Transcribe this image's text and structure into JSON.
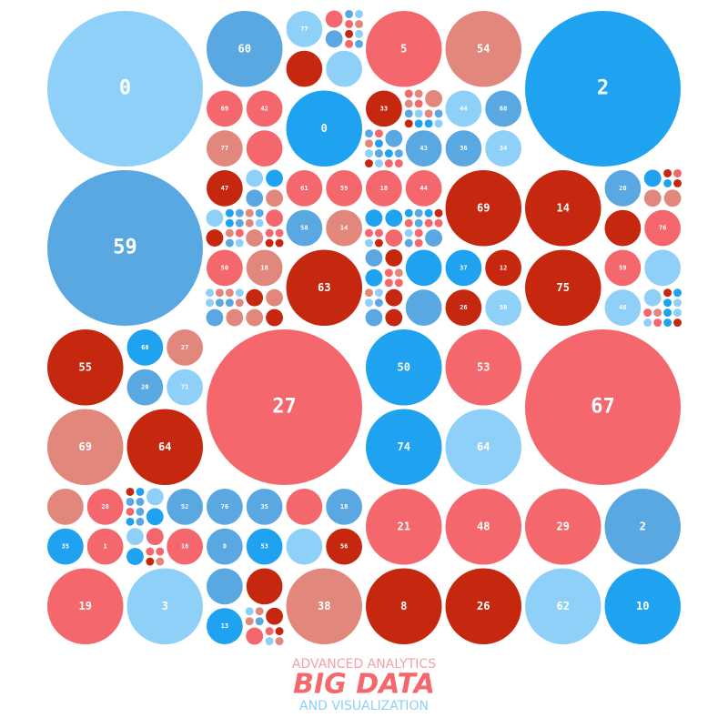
{
  "circles": [
    {
      "label": "0",
      "color": "#8fd0f8"
    },
    {
      "label": "2",
      "color": "#1fa3f0"
    },
    {
      "label": "59",
      "color": "#5aa8e2"
    },
    {
      "label": "27",
      "color": "#f4676c"
    },
    {
      "label": "67",
      "color": "#f4676c"
    },
    {
      "label": "60",
      "color": "#5aa8e2"
    },
    {
      "label": "5",
      "color": "#f4676c"
    },
    {
      "label": "54",
      "color": "#e2877b"
    },
    {
      "label": "0",
      "color": "#1fa3f0"
    },
    {
      "label": "69",
      "color": "#c5280f"
    },
    {
      "label": "14",
      "color": "#c5280f"
    },
    {
      "label": "63",
      "color": "#c5280f"
    },
    {
      "label": "75",
      "color": "#c5280f"
    },
    {
      "label": "55",
      "color": "#c5280f"
    },
    {
      "label": "50",
      "color": "#1fa3f0"
    },
    {
      "label": "53",
      "color": "#f4676c"
    },
    {
      "label": "69",
      "color": "#e2877b"
    },
    {
      "label": "64",
      "color": "#c5280f"
    },
    {
      "label": "74",
      "color": "#1fa3f0"
    },
    {
      "label": "64",
      "color": "#8fd0f8"
    },
    {
      "label": "21",
      "color": "#f4676c"
    },
    {
      "label": "48",
      "color": "#f4676c"
    },
    {
      "label": "29",
      "color": "#f4676c"
    },
    {
      "label": "2",
      "color": "#5aa8e2"
    },
    {
      "label": "19",
      "color": "#f4676c"
    },
    {
      "label": "3",
      "color": "#8fd0f8"
    },
    {
      "label": "38",
      "color": "#e2877b"
    },
    {
      "label": "8",
      "color": "#c5280f"
    },
    {
      "label": "26",
      "color": "#c5280f"
    },
    {
      "label": "62",
      "color": "#8fd0f8"
    },
    {
      "label": "10",
      "color": "#1fa3f0"
    },
    {
      "label": "77",
      "color": "#8fd0f8"
    },
    {
      "label": "69",
      "color": "#f4676c"
    },
    {
      "label": "42",
      "color": "#f4676c"
    },
    {
      "label": "77",
      "color": "#e2877b"
    },
    {
      "label": "33",
      "color": "#c5280f"
    },
    {
      "label": "43",
      "color": "#5aa8e2"
    },
    {
      "label": "44",
      "color": "#8fd0f8"
    },
    {
      "label": "68",
      "color": "#5aa8e2"
    },
    {
      "label": "36",
      "color": "#5aa8e2"
    },
    {
      "label": "34",
      "color": "#8fd0f8"
    },
    {
      "label": "47",
      "color": "#c5280f"
    },
    {
      "label": "61",
      "color": "#f4676c"
    },
    {
      "label": "59",
      "color": "#f4676c"
    },
    {
      "label": "58",
      "color": "#5aa8e2"
    },
    {
      "label": "14",
      "color": "#e2877b"
    },
    {
      "label": "18",
      "color": "#f4676c"
    },
    {
      "label": "44",
      "color": "#f4676c"
    },
    {
      "label": "20",
      "color": "#5aa8e2"
    },
    {
      "label": "76",
      "color": "#f4676c"
    },
    {
      "label": "50",
      "color": "#f4676c"
    },
    {
      "label": "18",
      "color": "#e2877b"
    },
    {
      "label": "37",
      "color": "#1fa3f0"
    },
    {
      "label": "12",
      "color": "#c5280f"
    },
    {
      "label": "26",
      "color": "#c5280f"
    },
    {
      "label": "50",
      "color": "#8fd0f8"
    },
    {
      "label": "59",
      "color": "#f4676c"
    },
    {
      "label": "46",
      "color": "#8fd0f8"
    },
    {
      "label": "68",
      "color": "#1fa3f0"
    },
    {
      "label": "27",
      "color": "#e2877b"
    },
    {
      "label": "20",
      "color": "#5aa8e2"
    },
    {
      "label": "71",
      "color": "#8fd0f8"
    },
    {
      "label": "28",
      "color": "#f4676c"
    },
    {
      "label": "35",
      "color": "#1fa3f0"
    },
    {
      "label": "1",
      "color": "#f4676c"
    },
    {
      "label": "52",
      "color": "#5aa8e2"
    },
    {
      "label": "16",
      "color": "#f4676c"
    },
    {
      "label": "76",
      "color": "#5aa8e2"
    },
    {
      "label": "35",
      "color": "#5aa8e2"
    },
    {
      "label": "0",
      "color": "#5aa8e2"
    },
    {
      "label": "53",
      "color": "#1fa3f0"
    },
    {
      "label": "18",
      "color": "#5aa8e2"
    },
    {
      "label": "56",
      "color": "#c5280f"
    },
    {
      "label": "13",
      "color": "#1fa3f0"
    }
  ],
  "footer": {
    "top": "ADVANCED ANALYTICS",
    "title": "BIG DATA",
    "bottom": "AND VISUALIZATION"
  }
}
